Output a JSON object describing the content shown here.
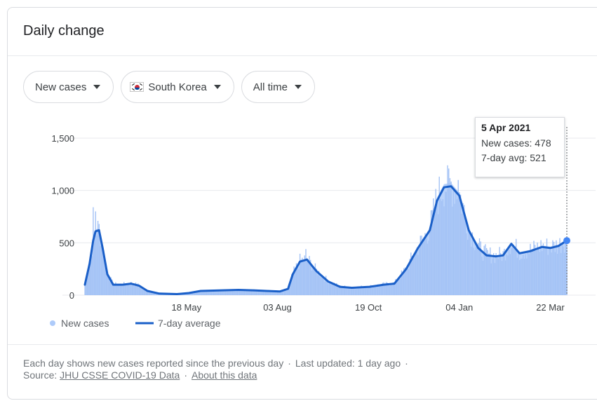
{
  "card": {
    "title": "Daily change"
  },
  "filters": {
    "metric": "New cases",
    "country": "South Korea",
    "range": "All time"
  },
  "tooltip": {
    "date": "5 Apr 2021",
    "new_cases": "New cases: 478",
    "avg": "7-day avg: 521"
  },
  "footer": {
    "note": "Each day shows new cases reported since the previous day",
    "updated": "Last updated: 1 day ago",
    "source_label": "Source:",
    "source_link": "JHU CSSE COVID-19 Data",
    "about_link": "About this data"
  },
  "colors": {
    "bars": "#aecbfa",
    "line": "#1a5fc8",
    "grid": "#e8eaed"
  },
  "chart_data": {
    "type": "bar",
    "title": "",
    "xlabel": "",
    "ylabel": "",
    "ylim": [
      0,
      1500
    ],
    "y_ticks": [
      "0",
      "500",
      "1,000",
      "1,500"
    ],
    "x_ticks": [
      "18 May",
      "03 Aug",
      "19 Oct",
      "04 Jan",
      "22 Mar"
    ],
    "grid": true,
    "legend_position": "bottom-left",
    "series": [
      {
        "name": "7-day average",
        "type": "line",
        "points": [
          [
            "2020-02-22",
            100
          ],
          [
            "2020-02-26",
            300
          ],
          [
            "2020-02-29",
            520
          ],
          [
            "2020-03-02",
            610
          ],
          [
            "2020-03-05",
            620
          ],
          [
            "2020-03-08",
            450
          ],
          [
            "2020-03-12",
            200
          ],
          [
            "2020-03-17",
            100
          ],
          [
            "2020-03-25",
            100
          ],
          [
            "2020-04-01",
            110
          ],
          [
            "2020-04-08",
            90
          ],
          [
            "2020-04-15",
            40
          ],
          [
            "2020-04-25",
            15
          ],
          [
            "2020-05-10",
            10
          ],
          [
            "2020-05-20",
            20
          ],
          [
            "2020-05-30",
            40
          ],
          [
            "2020-06-15",
            45
          ],
          [
            "2020-07-01",
            50
          ],
          [
            "2020-07-15",
            45
          ],
          [
            "2020-07-25",
            40
          ],
          [
            "2020-08-05",
            35
          ],
          [
            "2020-08-12",
            60
          ],
          [
            "2020-08-16",
            200
          ],
          [
            "2020-08-22",
            320
          ],
          [
            "2020-08-28",
            340
          ],
          [
            "2020-09-05",
            230
          ],
          [
            "2020-09-15",
            130
          ],
          [
            "2020-09-25",
            80
          ],
          [
            "2020-10-05",
            70
          ],
          [
            "2020-10-20",
            80
          ],
          [
            "2020-11-01",
            100
          ],
          [
            "2020-11-10",
            110
          ],
          [
            "2020-11-20",
            250
          ],
          [
            "2020-11-30",
            450
          ],
          [
            "2020-12-10",
            620
          ],
          [
            "2020-12-16",
            900
          ],
          [
            "2020-12-22",
            1030
          ],
          [
            "2020-12-28",
            1040
          ],
          [
            "2021-01-04",
            950
          ],
          [
            "2021-01-12",
            620
          ],
          [
            "2021-01-20",
            450
          ],
          [
            "2021-01-27",
            380
          ],
          [
            "2021-02-04",
            370
          ],
          [
            "2021-02-10",
            380
          ],
          [
            "2021-02-17",
            490
          ],
          [
            "2021-02-24",
            400
          ],
          [
            "2021-03-05",
            420
          ],
          [
            "2021-03-15",
            460
          ],
          [
            "2021-03-22",
            450
          ],
          [
            "2021-03-29",
            470
          ],
          [
            "2021-04-05",
            521
          ]
        ]
      },
      {
        "name": "New cases",
        "type": "bar",
        "peaks": [
          [
            "2020-02-29",
            840
          ],
          [
            "2020-03-02",
            800
          ],
          [
            "2020-08-27",
            440
          ],
          [
            "2020-12-25",
            1240
          ],
          [
            "2021-01-03",
            1100
          ],
          [
            "2021-04-05",
            478
          ]
        ]
      }
    ],
    "highlight": {
      "date": "2021-04-05",
      "value": 521
    }
  }
}
